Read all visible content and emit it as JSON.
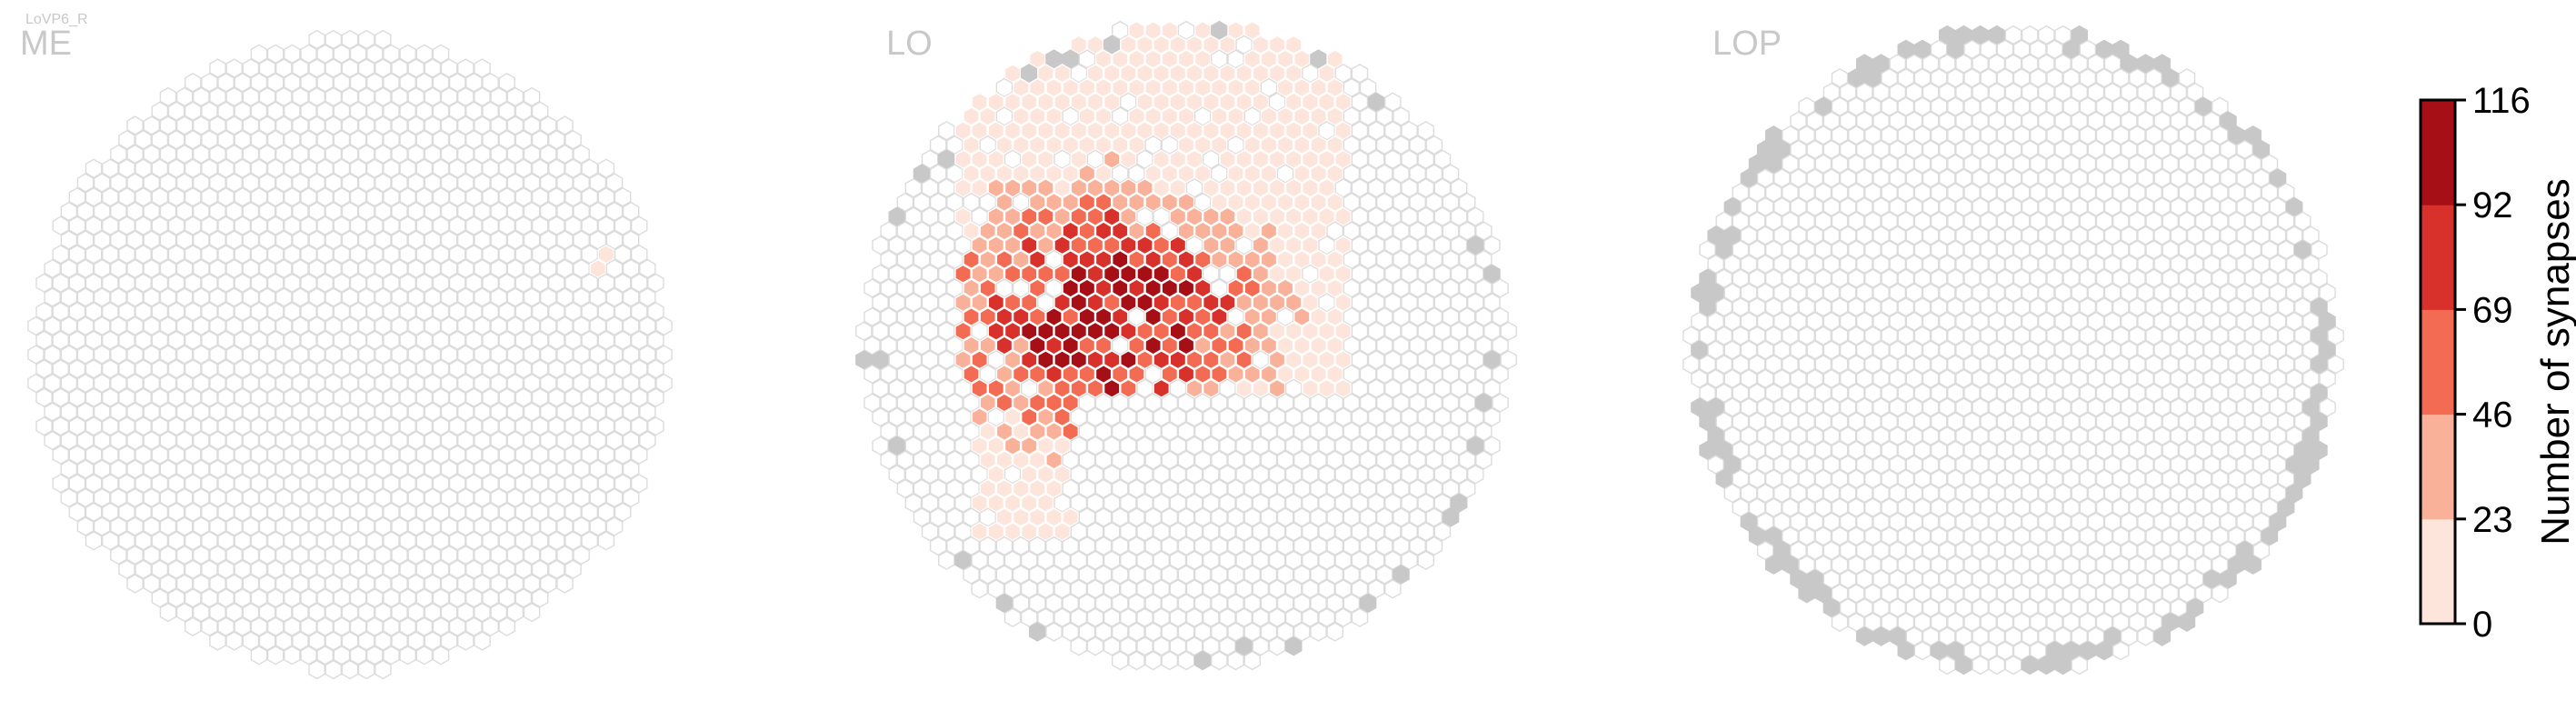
{
  "figure": {
    "cell_type_label": "LoVP6_R"
  },
  "colors": {
    "empty_fill": "#ffffff",
    "empty_stroke": "#dcdcdc",
    "outside_fill": "#c8c8c8",
    "heat_stroke": "#ffffff",
    "title_color": "#c8c8c8",
    "bins": [
      "#fde5dc",
      "#f9b19a",
      "#f46b53",
      "#d8302a",
      "#a50f15"
    ]
  },
  "chart_data": [
    {
      "type": "heatmap",
      "subtype": "hexagonal-column-map",
      "panel": "ME",
      "title": "ME",
      "columns_with_synapses": "2 columns at the right edge with low synapse counts (0-23 bin)",
      "values_summary": {
        "max_bin": "0-23"
      },
      "outside_region_columns": 0
    },
    {
      "type": "heatmap",
      "subtype": "hexagonal-column-map",
      "panel": "LO",
      "title": "LO",
      "columns_with_synapses": "upper-left and central region densely innervated; peak counts in the 92-116 bin",
      "values_summary": {
        "max_bin": "92-116"
      },
      "outside_region_columns": "scattered grey columns along the border"
    },
    {
      "type": "heatmap",
      "subtype": "hexagonal-column-map",
      "panel": "LOP",
      "title": "LOP",
      "columns_with_synapses": "none",
      "values_summary": {
        "max_bin": "none"
      },
      "outside_region_columns": "grey columns along the outer border"
    },
    {
      "type": "colorbar",
      "label": "Number of synapses",
      "ticks": [
        0,
        23,
        46,
        69,
        92,
        116
      ],
      "vmin": 0,
      "vmax": 116,
      "bins": 5
    }
  ],
  "colorbar": {
    "label": "Number of synapses",
    "ticks": [
      "0",
      "23",
      "46",
      "69",
      "92",
      "116"
    ]
  }
}
